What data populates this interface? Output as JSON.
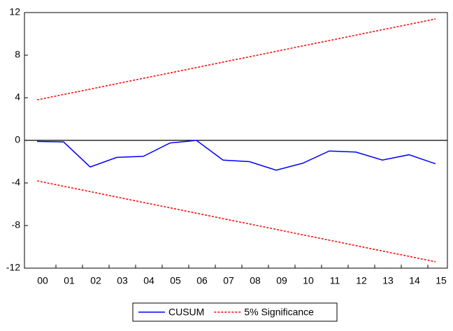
{
  "chart_data": {
    "type": "line",
    "categories": [
      "00",
      "01",
      "02",
      "03",
      "04",
      "05",
      "06",
      "07",
      "08",
      "09",
      "10",
      "11",
      "12",
      "13",
      "14",
      "15"
    ],
    "series": [
      {
        "name": "CUSUM",
        "color": "#0000ff",
        "dash": false,
        "values": [
          -0.1,
          -0.15,
          -2.5,
          -1.6,
          -1.5,
          -0.25,
          0,
          -1.85,
          -2.0,
          -2.8,
          -2.15,
          -1.0,
          -1.1,
          -1.85,
          -1.35,
          -2.2
        ]
      },
      {
        "name": "5% Significance",
        "color": "#ff0000",
        "dash": true,
        "values": [
          3.8,
          4.31,
          4.81,
          5.32,
          5.83,
          6.33,
          6.84,
          7.35,
          7.85,
          8.36,
          8.87,
          9.37,
          9.88,
          10.39,
          10.89,
          11.4
        ]
      },
      {
        "color": "#ff0000",
        "dash": true,
        "values": [
          -3.8,
          -4.31,
          -4.81,
          -5.32,
          -5.83,
          -6.33,
          -6.84,
          -7.35,
          -7.85,
          -8.36,
          -8.87,
          -9.37,
          -9.88,
          -10.39,
          -10.89,
          -11.4
        ]
      }
    ],
    "ylim": [
      -12,
      12
    ],
    "yticks": [
      12,
      8,
      4,
      0,
      -4,
      -8,
      -12
    ],
    "zero_line": true
  }
}
